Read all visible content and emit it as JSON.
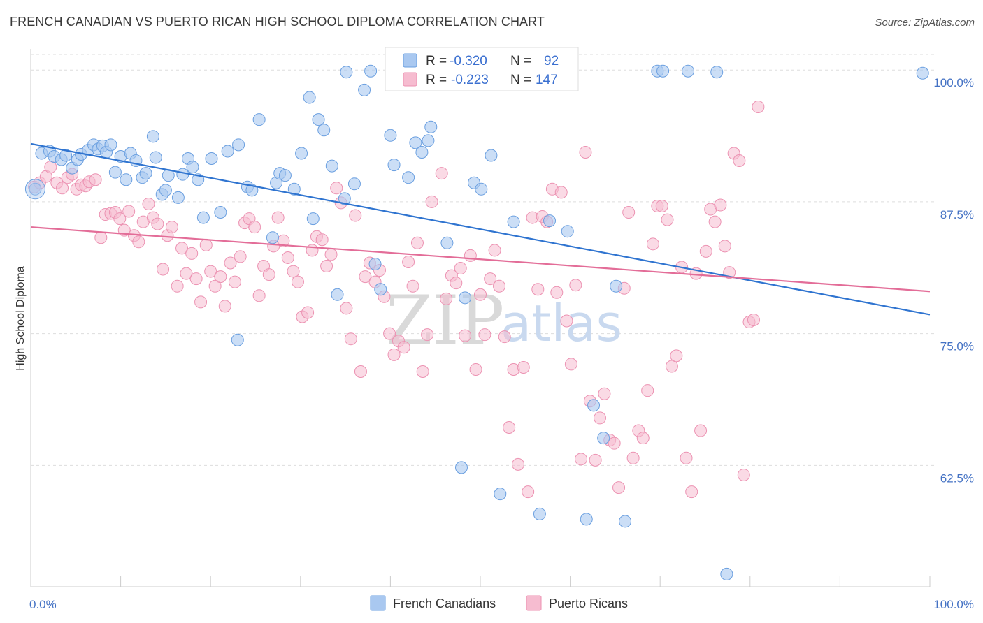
{
  "title": "FRENCH CANADIAN VS PUERTO RICAN HIGH SCHOOL DIPLOMA CORRELATION CHART",
  "source": "Source: ZipAtlas.com",
  "watermark": {
    "zip": "ZIP",
    "atlas": "atlas"
  },
  "legend_top": {
    "rows": [
      {
        "r_label": "R =",
        "r_value": "-0.320",
        "n_label": "N =",
        "n_value": "92"
      },
      {
        "r_label": "R =",
        "r_value": "-0.223",
        "n_label": "N =",
        "n_value": "147"
      }
    ]
  },
  "colors": {
    "blue_fill": "#a9c8f0",
    "blue_stroke": "#6a9fe0",
    "blue_line": "#2f74d0",
    "pink_fill": "#f6bcd0",
    "pink_stroke": "#ec92b2",
    "pink_line": "#e36d98",
    "grid": "#dddddd",
    "tick_label": "#4472c4"
  },
  "chart_data": {
    "type": "scatter",
    "title": "FRENCH CANADIAN VS PUERTO RICAN HIGH SCHOOL DIPLOMA CORRELATION CHART",
    "xlabel": "",
    "ylabel": "High School Diploma",
    "xlim": [
      0,
      100
    ],
    "ylim": [
      51,
      102
    ],
    "x_tick_labels": [
      "0.0%",
      "100.0%"
    ],
    "y_ticks": [
      62.5,
      75.0,
      87.5,
      100.0
    ],
    "y_tick_labels": [
      "62.5%",
      "75.0%",
      "87.5%",
      "100.0%"
    ],
    "grid": "horizontal dashed",
    "legend": "bottom-center",
    "series": [
      {
        "name": "French Canadians",
        "R": -0.32,
        "N": 92,
        "trend": [
          [
            0,
            93.0
          ],
          [
            100,
            76.8
          ]
        ],
        "points": [
          [
            0.5,
            88.7
          ],
          [
            1.2,
            92.1
          ],
          [
            2.1,
            92.3
          ],
          [
            2.6,
            91.8
          ],
          [
            3.4,
            91.5
          ],
          [
            3.9,
            91.9
          ],
          [
            4.6,
            90.7
          ],
          [
            5.2,
            91.5
          ],
          [
            5.6,
            92.0
          ],
          [
            6.4,
            92.4
          ],
          [
            7.0,
            92.9
          ],
          [
            7.5,
            92.5
          ],
          [
            8.0,
            92.8
          ],
          [
            8.4,
            92.2
          ],
          [
            8.9,
            92.9
          ],
          [
            9.4,
            90.3
          ],
          [
            10.0,
            91.8
          ],
          [
            10.6,
            89.6
          ],
          [
            11.1,
            92.1
          ],
          [
            11.7,
            91.4
          ],
          [
            12.4,
            89.8
          ],
          [
            12.8,
            90.2
          ],
          [
            13.6,
            93.7
          ],
          [
            13.9,
            91.7
          ],
          [
            14.6,
            88.2
          ],
          [
            15.0,
            88.6
          ],
          [
            15.3,
            90.0
          ],
          [
            16.4,
            87.9
          ],
          [
            16.9,
            90.1
          ],
          [
            17.5,
            91.6
          ],
          [
            18.0,
            90.8
          ],
          [
            18.6,
            89.6
          ],
          [
            19.2,
            86.0
          ],
          [
            20.1,
            91.6
          ],
          [
            21.1,
            86.5
          ],
          [
            21.9,
            92.3
          ],
          [
            23.1,
            92.9
          ],
          [
            24.1,
            88.9
          ],
          [
            24.6,
            88.6
          ],
          [
            25.4,
            95.3
          ],
          [
            26.9,
            84.1
          ],
          [
            27.3,
            89.3
          ],
          [
            27.7,
            90.2
          ],
          [
            28.3,
            90.0
          ],
          [
            29.3,
            88.7
          ],
          [
            30.1,
            92.1
          ],
          [
            31.0,
            97.4
          ],
          [
            31.4,
            85.9
          ],
          [
            32.0,
            95.3
          ],
          [
            32.6,
            94.3
          ],
          [
            33.5,
            90.9
          ],
          [
            34.1,
            78.7
          ],
          [
            34.9,
            87.8
          ],
          [
            35.1,
            99.8
          ],
          [
            36.0,
            89.2
          ],
          [
            37.1,
            98.1
          ],
          [
            37.8,
            99.9
          ],
          [
            38.3,
            81.6
          ],
          [
            38.9,
            79.2
          ],
          [
            40.0,
            93.8
          ],
          [
            40.4,
            91.0
          ],
          [
            41.0,
            99.1
          ],
          [
            42.0,
            89.8
          ],
          [
            42.8,
            93.1
          ],
          [
            43.5,
            92.2
          ],
          [
            44.2,
            93.3
          ],
          [
            44.5,
            94.6
          ],
          [
            45.1,
            99.8
          ],
          [
            46.3,
            83.6
          ],
          [
            47.9,
            62.3
          ],
          [
            48.3,
            78.4
          ],
          [
            49.3,
            89.3
          ],
          [
            50.1,
            88.7
          ],
          [
            51.2,
            91.9
          ],
          [
            52.2,
            59.8
          ],
          [
            53.7,
            85.6
          ],
          [
            56.1,
            99.9
          ],
          [
            56.6,
            57.9
          ],
          [
            57.7,
            85.7
          ],
          [
            59.7,
            84.7
          ],
          [
            61.8,
            57.4
          ],
          [
            62.6,
            68.2
          ],
          [
            63.7,
            65.1
          ],
          [
            65.1,
            79.5
          ],
          [
            66.1,
            57.2
          ],
          [
            69.7,
            99.9
          ],
          [
            70.3,
            99.9
          ],
          [
            73.1,
            99.9
          ],
          [
            76.3,
            99.8
          ],
          [
            77.4,
            52.2
          ],
          [
            99.2,
            99.7
          ],
          [
            23.0,
            74.4
          ]
        ]
      },
      {
        "name": "Puerto Ricans",
        "R": -0.223,
        "N": 147,
        "trend": [
          [
            0,
            85.1
          ],
          [
            100,
            79.0
          ]
        ],
        "points": [
          [
            0.4,
            88.9
          ],
          [
            1.0,
            89.3
          ],
          [
            1.7,
            89.9
          ],
          [
            2.2,
            90.8
          ],
          [
            2.9,
            89.3
          ],
          [
            3.5,
            88.8
          ],
          [
            4.1,
            89.8
          ],
          [
            4.6,
            90.1
          ],
          [
            5.1,
            88.7
          ],
          [
            5.6,
            89.1
          ],
          [
            6.1,
            89.0
          ],
          [
            6.5,
            89.4
          ],
          [
            7.2,
            89.6
          ],
          [
            7.8,
            84.1
          ],
          [
            8.3,
            86.3
          ],
          [
            8.9,
            86.4
          ],
          [
            9.4,
            86.5
          ],
          [
            9.9,
            85.9
          ],
          [
            10.4,
            84.8
          ],
          [
            10.9,
            86.6
          ],
          [
            11.5,
            84.3
          ],
          [
            12.0,
            83.7
          ],
          [
            12.5,
            85.6
          ],
          [
            13.1,
            87.3
          ],
          [
            13.6,
            86.0
          ],
          [
            14.1,
            85.4
          ],
          [
            14.7,
            81.1
          ],
          [
            15.2,
            84.3
          ],
          [
            15.7,
            85.1
          ],
          [
            16.3,
            79.5
          ],
          [
            16.8,
            83.1
          ],
          [
            17.3,
            80.7
          ],
          [
            17.9,
            82.6
          ],
          [
            18.4,
            80.2
          ],
          [
            18.9,
            78.0
          ],
          [
            19.5,
            83.4
          ],
          [
            20.0,
            80.9
          ],
          [
            20.5,
            79.5
          ],
          [
            21.1,
            80.4
          ],
          [
            21.6,
            77.6
          ],
          [
            22.2,
            81.7
          ],
          [
            22.7,
            79.9
          ],
          [
            23.3,
            82.3
          ],
          [
            23.8,
            85.5
          ],
          [
            24.3,
            85.9
          ],
          [
            24.9,
            85.1
          ],
          [
            25.4,
            78.6
          ],
          [
            25.9,
            81.4
          ],
          [
            26.5,
            80.6
          ],
          [
            27.0,
            83.3
          ],
          [
            27.5,
            86.0
          ],
          [
            28.1,
            83.8
          ],
          [
            28.6,
            82.2
          ],
          [
            29.2,
            80.9
          ],
          [
            29.7,
            79.9
          ],
          [
            30.2,
            76.6
          ],
          [
            30.8,
            77.0
          ],
          [
            31.3,
            82.9
          ],
          [
            31.8,
            84.2
          ],
          [
            32.4,
            83.9
          ],
          [
            32.9,
            81.4
          ],
          [
            33.4,
            82.5
          ],
          [
            34.0,
            88.8
          ],
          [
            34.5,
            87.4
          ],
          [
            35.1,
            77.4
          ],
          [
            35.6,
            74.5
          ],
          [
            36.1,
            86.2
          ],
          [
            36.7,
            71.4
          ],
          [
            37.2,
            80.4
          ],
          [
            37.7,
            81.7
          ],
          [
            38.3,
            79.9
          ],
          [
            38.8,
            81.0
          ],
          [
            39.3,
            78.5
          ],
          [
            39.9,
            75.0
          ],
          [
            40.4,
            73.0
          ],
          [
            40.9,
            74.3
          ],
          [
            41.5,
            73.7
          ],
          [
            42.0,
            81.8
          ],
          [
            42.5,
            79.5
          ],
          [
            43.0,
            83.6
          ],
          [
            43.6,
            71.4
          ],
          [
            44.1,
            74.9
          ],
          [
            44.6,
            87.5
          ],
          [
            45.2,
            100.0
          ],
          [
            45.7,
            90.2
          ],
          [
            46.2,
            78.3
          ],
          [
            46.8,
            80.5
          ],
          [
            47.3,
            79.8
          ],
          [
            47.8,
            81.2
          ],
          [
            48.3,
            74.8
          ],
          [
            48.9,
            82.4
          ],
          [
            49.5,
            71.6
          ],
          [
            50.0,
            78.7
          ],
          [
            50.5,
            74.9
          ],
          [
            51.1,
            80.2
          ],
          [
            51.6,
            82.9
          ],
          [
            52.1,
            79.5
          ],
          [
            52.7,
            74.7
          ],
          [
            53.2,
            66.1
          ],
          [
            53.7,
            71.6
          ],
          [
            54.2,
            62.6
          ],
          [
            54.8,
            71.8
          ],
          [
            55.3,
            60.0
          ],
          [
            55.8,
            86.0
          ],
          [
            56.4,
            79.2
          ],
          [
            56.9,
            86.1
          ],
          [
            57.4,
            85.6
          ],
          [
            58.0,
            88.7
          ],
          [
            58.5,
            78.9
          ],
          [
            59.0,
            88.4
          ],
          [
            59.6,
            76.2
          ],
          [
            60.1,
            72.1
          ],
          [
            60.6,
            79.6
          ],
          [
            61.2,
            63.1
          ],
          [
            61.7,
            92.2
          ],
          [
            62.2,
            68.6
          ],
          [
            62.8,
            63.0
          ],
          [
            63.3,
            67.0
          ],
          [
            63.8,
            69.3
          ],
          [
            64.4,
            64.9
          ],
          [
            64.9,
            64.6
          ],
          [
            65.4,
            60.4
          ],
          [
            66.0,
            79.3
          ],
          [
            66.5,
            86.5
          ],
          [
            67.0,
            63.2
          ],
          [
            67.6,
            65.8
          ],
          [
            68.1,
            65.1
          ],
          [
            68.6,
            69.6
          ],
          [
            69.2,
            83.5
          ],
          [
            69.7,
            87.1
          ],
          [
            70.2,
            87.1
          ],
          [
            70.8,
            85.8
          ],
          [
            71.3,
            71.9
          ],
          [
            71.8,
            72.9
          ],
          [
            72.4,
            81.3
          ],
          [
            72.9,
            63.2
          ],
          [
            73.5,
            60.0
          ],
          [
            74.0,
            80.7
          ],
          [
            74.5,
            65.8
          ],
          [
            75.1,
            82.8
          ],
          [
            75.6,
            86.8
          ],
          [
            76.1,
            85.6
          ],
          [
            76.7,
            87.2
          ],
          [
            77.2,
            83.3
          ],
          [
            77.7,
            80.8
          ],
          [
            78.2,
            92.1
          ],
          [
            78.8,
            91.4
          ],
          [
            79.3,
            61.6
          ],
          [
            79.9,
            76.1
          ],
          [
            80.4,
            76.3
          ],
          [
            80.9,
            96.5
          ]
        ]
      }
    ]
  },
  "bottom_legend": [
    "French Canadians",
    "Puerto Ricans"
  ]
}
